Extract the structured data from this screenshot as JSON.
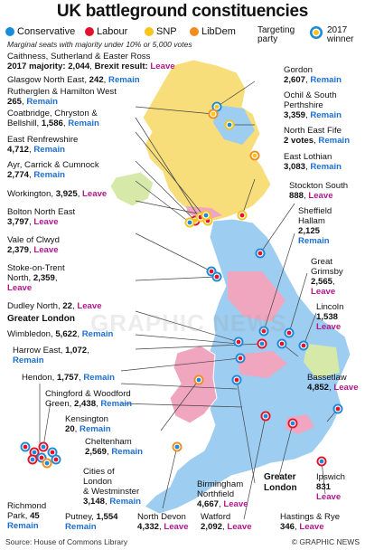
{
  "title": "UK battleground constituencies",
  "subtitle": "Marginal seats with majority under 10% or 5,000 votes",
  "legend": {
    "conservative": "Conservative",
    "labour": "Labour",
    "snp": "SNP",
    "libdem": "LibDem",
    "targeting": "Targeting\nparty",
    "winner": "2017\nwinner"
  },
  "colors": {
    "conservative": "#1a8bd6",
    "labour": "#e3122c",
    "snp": "#f7c51e",
    "libdem": "#f28c1e",
    "map_green": "#d7e9a9",
    "map_pink": "#f1a6c0",
    "map_blue": "#9dcdf0",
    "map_yellow": "#f7de7b",
    "map_orange": "#f5b06a"
  },
  "headline": {
    "name": "Caithness, Sutherland & Easter Ross",
    "majority_label": "2017 majority:",
    "majority": "2,044",
    "brexit_label": "Brexit result:",
    "brexit": "Leave"
  },
  "labels": {
    "glasgow_ne": {
      "name": "Glasgow North East,",
      "maj": "242",
      "res": "Remain"
    },
    "rutherglen": {
      "name": "Rutherglen & Hamilton West",
      "maj": "265",
      "res": "Remain"
    },
    "coatbridge": {
      "name": "Coatbridge, Chryston &",
      "name2": "Bellshill,",
      "maj": "1,586",
      "res": "Remain"
    },
    "east_renfrew": {
      "name": "East Renfrewshire",
      "maj": "4,712",
      "res": "Remain"
    },
    "ayr": {
      "name": "Ayr, Carrick & Cumnock",
      "maj": "2,774",
      "res": "Remain"
    },
    "workington": {
      "name": "Workington,",
      "maj": "3,925",
      "res": "Leave"
    },
    "bolton": {
      "name": "Bolton North East",
      "maj": "3,797",
      "res": "Leave"
    },
    "clwyd": {
      "name": "Vale of Clwyd",
      "maj": "2,379",
      "res": "Leave"
    },
    "stoke": {
      "name": "Stoke-on-Trent",
      "name2": "North,",
      "maj": "2,359",
      "res": "Leave"
    },
    "dudley": {
      "name": "Dudley North,",
      "maj": "22",
      "res": "Leave"
    },
    "gordon": {
      "name": "Gordon",
      "maj": "2,607",
      "res": "Remain"
    },
    "ochil": {
      "name": "Ochil & South",
      "name2": "Perthshire",
      "maj": "3,359",
      "res": "Remain"
    },
    "ne_fife": {
      "name": "North East Fife",
      "maj": "2 votes",
      "res": "Remain"
    },
    "e_lothian": {
      "name": "East Lothian",
      "maj": "3,083",
      "res": "Remain"
    },
    "stockton": {
      "name": "Stockton South",
      "maj": "888",
      "res": "Leave"
    },
    "sheffield": {
      "name": "Sheffield",
      "name2": "Hallam",
      "maj": "2,125",
      "res": "Remain"
    },
    "grimsby": {
      "name": "Great",
      "name2": "Grimsby",
      "maj": "2,565",
      "res": "Leave"
    },
    "lincoln": {
      "name": "Lincoln",
      "maj": "1,538",
      "res": "Leave"
    },
    "bassetlaw": {
      "name": "Bassetlaw",
      "maj": "4,852",
      "res": "Leave"
    },
    "greater_london": "Greater London",
    "wimbledon": {
      "name": "Wimbledon,",
      "maj": "5,622",
      "res": "Remain"
    },
    "harrow": {
      "name": "Harrow East,",
      "maj": "1,072",
      "res": "Remain"
    },
    "hendon": {
      "name": "Hendon,",
      "maj": "1,757",
      "res": "Remain"
    },
    "chingford": {
      "name": "Chingford & Woodford",
      "name2": "Green,",
      "maj": "2,438",
      "res": "Remain"
    },
    "kensington": {
      "name": "Kensington",
      "maj": "20",
      "res": "Remain"
    },
    "cheltenham": {
      "name": "Cheltenham",
      "maj": "2,569",
      "res": "Remain"
    },
    "cities": {
      "name": "Cities of",
      "name2": "London",
      "name3": "& Westminster",
      "maj": "3,148",
      "res": "Remain"
    },
    "richmond": {
      "name": "Richmond",
      "name2": "Park,",
      "maj": "45",
      "res": "Remain"
    },
    "putney": {
      "name": "Putney,",
      "maj": "1,554",
      "res": "Remain"
    },
    "n_devon": {
      "name": "North Devon",
      "maj": "4,332",
      "res": "Leave"
    },
    "birmingham": {
      "name": "Birmingham",
      "name2": "Northfield",
      "maj": "4,667",
      "res": "Leave"
    },
    "watford": {
      "name": "Watford",
      "maj": "2,092",
      "res": "Leave"
    },
    "greater_london2": "Greater\nLondon",
    "ipswich": {
      "name": "Ipswich",
      "maj": "831",
      "res": "Leave"
    },
    "hastings": {
      "name": "Hastings & Rye",
      "maj": "346",
      "res": "Leave"
    }
  },
  "source": "Source: House of Commons Library",
  "credit": "© GRAPHIC NEWS",
  "watermark": "GRAPHIC NEWS"
}
